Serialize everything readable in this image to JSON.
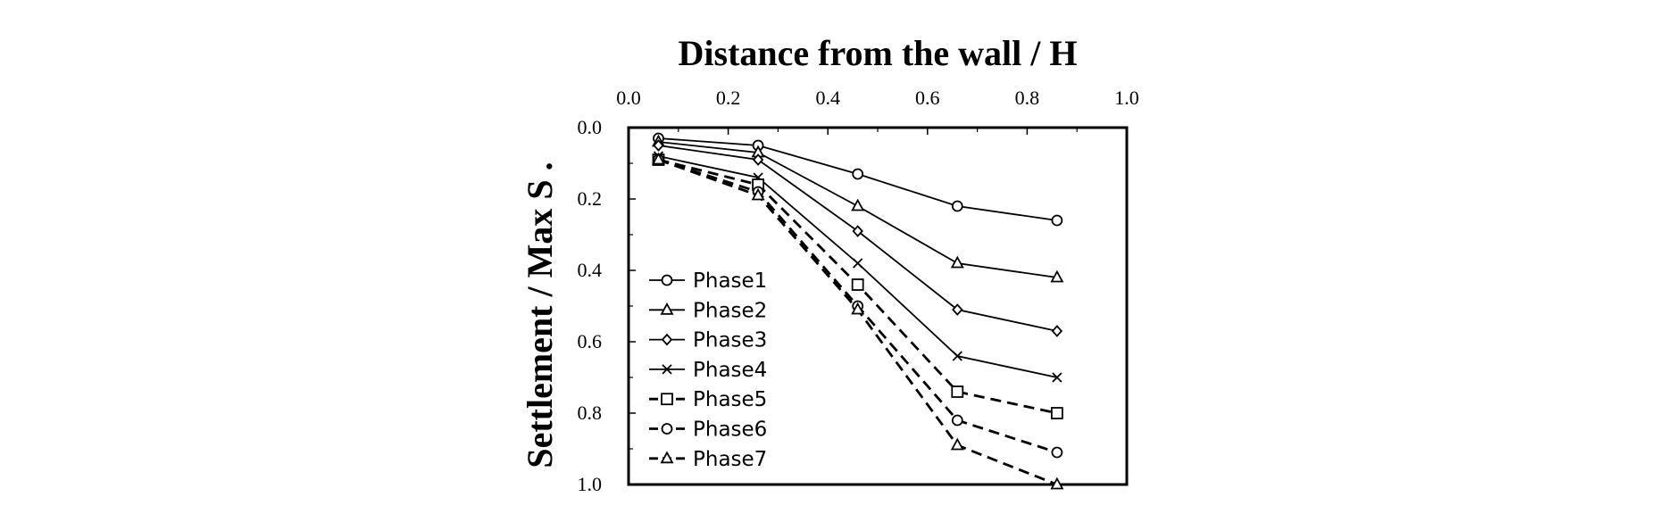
{
  "chart_data": {
    "type": "line",
    "title": "",
    "xlabel": "Distance from the wall / H",
    "ylabel": "Settlement / Max S .",
    "xlim": [
      0.0,
      1.0
    ],
    "ylim": [
      0.0,
      1.0
    ],
    "y_inverted": true,
    "x_axis_position": "top",
    "grid": false,
    "legend_position": "bottom-left",
    "x_ticks": [
      "0.0",
      "0.2",
      "0.4",
      "0.6",
      "0.8",
      "1.0"
    ],
    "y_ticks": [
      "0.0",
      "0.2",
      "0.4",
      "0.6",
      "0.8",
      "1.0"
    ],
    "x": [
      0.06,
      0.26,
      0.46,
      0.66,
      0.86
    ],
    "series": [
      {
        "name": "Phase1",
        "marker": "circle",
        "dash": false,
        "values": [
          0.03,
          0.05,
          0.13,
          0.22,
          0.26
        ]
      },
      {
        "name": "Phase2",
        "marker": "triangle",
        "dash": false,
        "values": [
          0.04,
          0.07,
          0.22,
          0.38,
          0.42
        ]
      },
      {
        "name": "Phase3",
        "marker": "diamond",
        "dash": false,
        "values": [
          0.05,
          0.09,
          0.29,
          0.51,
          0.57
        ]
      },
      {
        "name": "Phase4",
        "marker": "x",
        "dash": false,
        "values": [
          0.08,
          0.14,
          0.38,
          0.64,
          0.7
        ]
      },
      {
        "name": "Phase5",
        "marker": "square",
        "dash": true,
        "values": [
          0.09,
          0.16,
          0.44,
          0.74,
          0.8
        ]
      },
      {
        "name": "Phase6",
        "marker": "circle",
        "dash": true,
        "values": [
          0.09,
          0.18,
          0.5,
          0.82,
          0.91
        ]
      },
      {
        "name": "Phase7",
        "marker": "triangle",
        "dash": true,
        "values": [
          0.09,
          0.19,
          0.51,
          0.89,
          1.0
        ]
      }
    ]
  }
}
